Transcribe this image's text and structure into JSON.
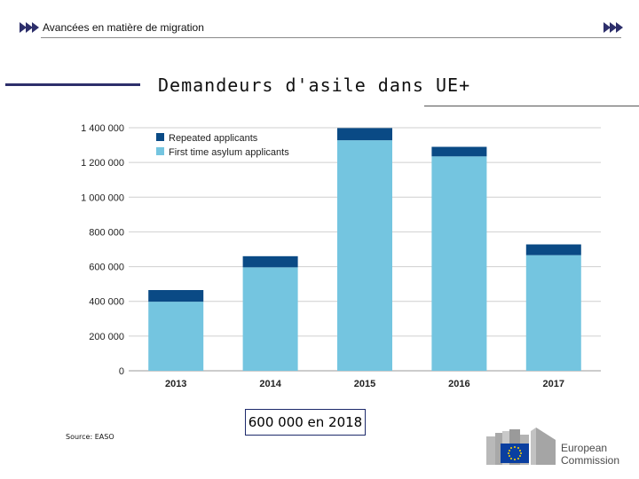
{
  "header": {
    "text": "Avancées en matière de migration"
  },
  "title": "Demandeurs d'asile dans UE+",
  "callout": "600 000 en 2018",
  "source": "Source: EASO",
  "logo": {
    "line1": "European",
    "line2": "Commission"
  },
  "colors": {
    "repeated": "#0a4a85",
    "first": "#74c5e0",
    "grid": "#cfcfcf",
    "title_bar": "#2d2f6b"
  },
  "chart_data": {
    "type": "bar",
    "stacked": true,
    "categories": [
      "2013",
      "2014",
      "2015",
      "2016",
      "2017"
    ],
    "series": [
      {
        "name": "First time asylum applicants",
        "values": [
          398000,
          596000,
          1328000,
          1235000,
          666000
        ]
      },
      {
        "name": "Repeated applicants",
        "values": [
          67000,
          64000,
          70000,
          55000,
          62000
        ]
      }
    ],
    "legend": [
      "Repeated applicants",
      "First time asylum applicants"
    ],
    "legend_position": "top-left",
    "ylim": [
      0,
      1400000
    ],
    "yticks": [
      0,
      200000,
      400000,
      600000,
      800000,
      1000000,
      1200000,
      1400000
    ],
    "ytick_labels": [
      "0",
      "200 000",
      "400 000",
      "600 000",
      "800 000",
      "1 000 000",
      "1 200 000",
      "1 400 000"
    ],
    "xlabel": "",
    "ylabel": "",
    "grid": true
  }
}
